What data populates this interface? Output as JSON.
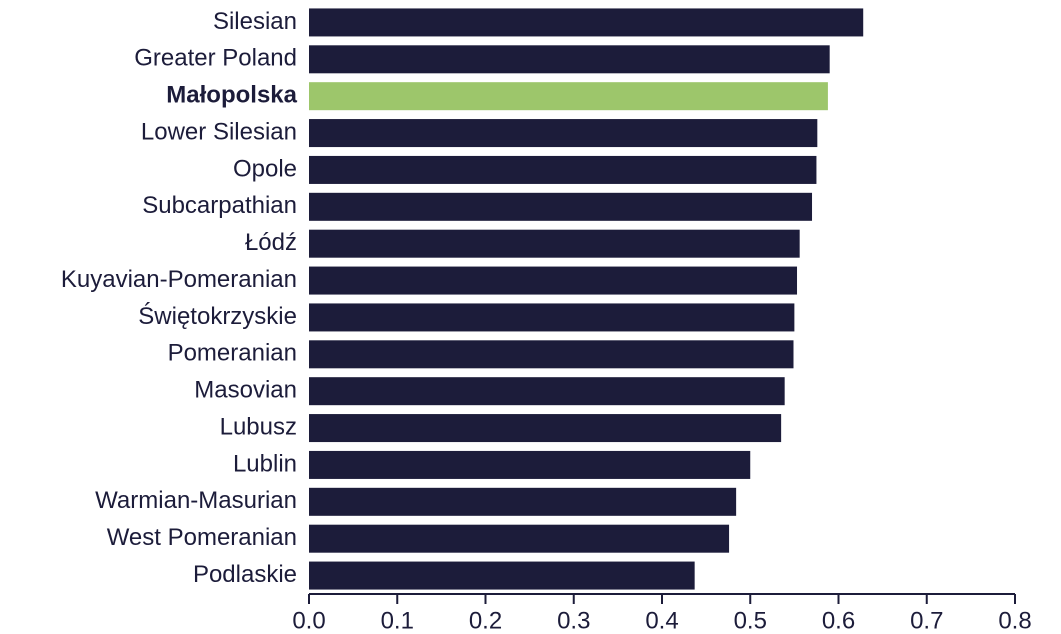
{
  "chart_data": {
    "type": "barh",
    "categories": [
      "Silesian",
      "Greater Poland",
      "Małopolska",
      "Lower Silesian",
      "Opole",
      "Subcarpathian",
      "Łódź",
      "Kuyavian-Pomeranian",
      "Świętokrzyskie",
      "Pomeranian",
      "Masovian",
      "Lubusz",
      "Lublin",
      "Warmian-Masurian",
      "West Pomeranian",
      "Podlaskie"
    ],
    "values": [
      0.628,
      0.59,
      0.588,
      0.576,
      0.575,
      0.57,
      0.556,
      0.553,
      0.55,
      0.549,
      0.539,
      0.535,
      0.5,
      0.484,
      0.476,
      0.437
    ],
    "colors": [
      "#1c1c3a",
      "#1c1c3a",
      "#9dc66b",
      "#1c1c3a",
      "#1c1c3a",
      "#1c1c3a",
      "#1c1c3a",
      "#1c1c3a",
      "#1c1c3a",
      "#1c1c3a",
      "#1c1c3a",
      "#1c1c3a",
      "#1c1c3a",
      "#1c1c3a",
      "#1c1c3a",
      "#1c1c3a"
    ],
    "highlight_color": "#9dc66b",
    "xlim": [
      0,
      0.8
    ],
    "xticks": [
      {
        "value": 0,
        "label": "0.0"
      },
      0.1,
      0.2,
      0.3,
      0.4,
      0.5,
      0.6,
      0.7,
      0.8
    ],
    "grid": false
  }
}
